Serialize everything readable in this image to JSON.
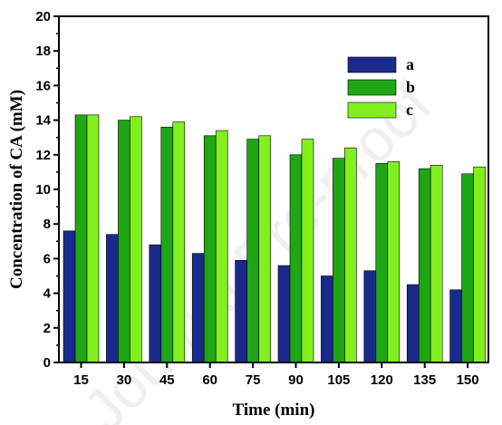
{
  "watermark": "Journal Pre-proof",
  "chart_data": {
    "type": "bar",
    "title": "",
    "xlabel": "Time (min)",
    "ylabel": "Concentration of CA (mM)",
    "ylim": [
      0,
      20
    ],
    "yticks": [
      "0",
      "2",
      "4",
      "6",
      "8",
      "10",
      "12",
      "14",
      "16",
      "18",
      "20"
    ],
    "categories": [
      "15",
      "30",
      "45",
      "60",
      "75",
      "90",
      "105",
      "120",
      "135",
      "150"
    ],
    "series": [
      {
        "name": "a",
        "color": "#1a2a8c",
        "values": [
          7.6,
          7.4,
          6.8,
          6.3,
          5.9,
          5.6,
          5.0,
          5.3,
          4.5,
          4.2
        ]
      },
      {
        "name": "b",
        "color": "#1fa614",
        "values": [
          14.3,
          14.0,
          13.6,
          13.1,
          12.9,
          12.0,
          11.8,
          11.5,
          11.2,
          10.9
        ]
      },
      {
        "name": "c",
        "color": "#82f01e",
        "values": [
          14.3,
          14.2,
          13.9,
          13.4,
          13.1,
          12.9,
          12.4,
          11.6,
          11.4,
          11.3
        ]
      }
    ],
    "legend_position": "top-right",
    "grid": false
  }
}
